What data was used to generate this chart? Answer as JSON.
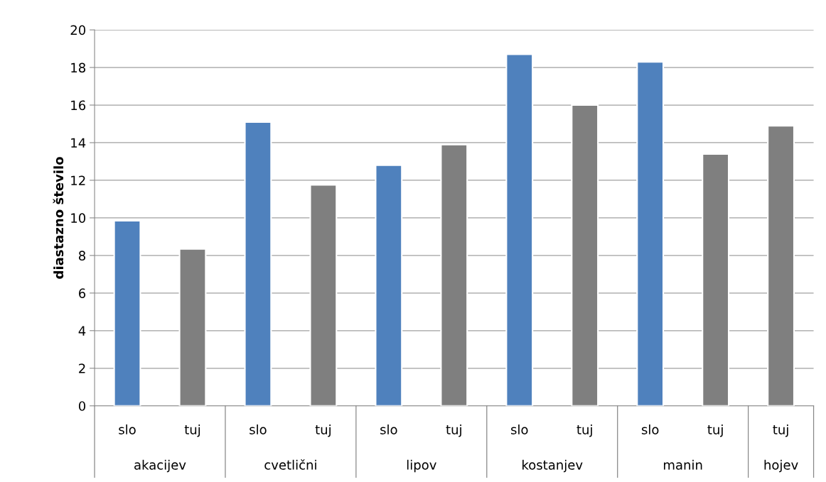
{
  "chart_data": {
    "type": "bar",
    "ylabel": "diastazno število",
    "categories": [
      "slo",
      "tuj",
      "slo",
      "tuj",
      "slo",
      "tuj",
      "slo",
      "tuj",
      "slo",
      "tuj",
      "tuj"
    ],
    "values": [
      9.85,
      8.35,
      15.1,
      11.75,
      12.8,
      13.9,
      18.7,
      16.0,
      18.3,
      13.4,
      14.9
    ],
    "colors": [
      "#4f81bd",
      "#7f7f7f",
      "#4f81bd",
      "#7f7f7f",
      "#4f81bd",
      "#7f7f7f",
      "#4f81bd",
      "#7f7f7f",
      "#4f81bd",
      "#7f7f7f",
      "#7f7f7f"
    ],
    "annotations": [
      "akacijev",
      "cvetlični",
      "lipov",
      "kostanjev",
      "manin",
      "hojev"
    ],
    "ylim": [
      0,
      20
    ],
    "yticks": [
      0,
      2,
      4,
      6,
      8,
      10,
      12,
      14,
      16,
      18,
      20
    ],
    "grid": "y",
    "legend": false
  }
}
